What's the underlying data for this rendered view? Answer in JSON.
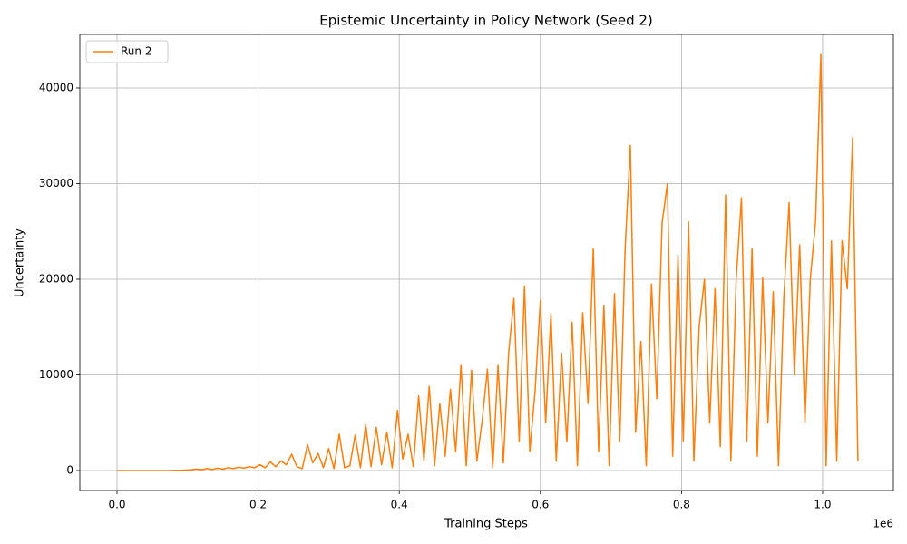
{
  "chart_data": {
    "type": "line",
    "title": "Epistemic Uncertainty in Policy Network (Seed 2)",
    "x_label": "Training Steps",
    "y_label": "Uncertainty",
    "x_offset_label": "1e6",
    "x": [
      0,
      7500,
      15000,
      22500,
      30000,
      37500,
      45000,
      52500,
      60000,
      67500,
      75000,
      82500,
      90000,
      97500,
      105000,
      112500,
      120000,
      127500,
      135000,
      142500,
      150000,
      157500,
      165000,
      172500,
      180000,
      187500,
      195000,
      202500,
      210000,
      217500,
      225000,
      232500,
      240000,
      247500,
      255000,
      262500,
      270000,
      277500,
      285000,
      292500,
      300000,
      307500,
      315000,
      322500,
      330000,
      337500,
      345000,
      352500,
      360000,
      367500,
      375000,
      382500,
      390000,
      397500,
      405000,
      412500,
      420000,
      427500,
      435000,
      442500,
      450000,
      457500,
      465000,
      472500,
      480000,
      487500,
      495000,
      502500,
      510000,
      517500,
      525000,
      532500,
      540000,
      547500,
      555000,
      562500,
      570000,
      577500,
      585000,
      592500,
      600000,
      607500,
      615000,
      622500,
      630000,
      637500,
      645000,
      652500,
      660000,
      667500,
      675000,
      682500,
      690000,
      697500,
      705000,
      712500,
      720000,
      727500,
      735000,
      742500,
      750000,
      757500,
      765000,
      772500,
      780000,
      787500,
      795000,
      802500,
      810000,
      817500,
      825000,
      832500,
      840000,
      847500,
      855000,
      862500,
      870000,
      877500,
      885000,
      892500,
      900000,
      907500,
      915000,
      922500,
      930000,
      937500,
      945000,
      952500,
      960000,
      967500,
      975000,
      982500,
      990000,
      997500,
      1005000,
      1012500,
      1020000,
      1027500,
      1035000,
      1042500,
      1050000
    ],
    "series": [
      {
        "name": "Run 2",
        "color": "#ff7f0e",
        "values": [
          0,
          0,
          0,
          0,
          0,
          0,
          0,
          0,
          0,
          0,
          0,
          20,
          30,
          50,
          80,
          150,
          100,
          200,
          120,
          250,
          150,
          300,
          200,
          350,
          250,
          400,
          300,
          600,
          300,
          900,
          400,
          1000,
          600,
          1700,
          400,
          200,
          2700,
          800,
          1800,
          300,
          2300,
          200,
          3800,
          300,
          500,
          3700,
          300,
          4800,
          400,
          4500,
          600,
          4000,
          300,
          6300,
          1200,
          3800,
          400,
          7800,
          1000,
          8800,
          500,
          7000,
          1500,
          8500,
          2000,
          11000,
          500,
          10500,
          1000,
          5200,
          10600,
          300,
          11000,
          800,
          12300,
          18000,
          3000,
          19300,
          2000,
          8300,
          17800,
          5000,
          16400,
          1000,
          12300,
          3000,
          15500,
          500,
          16500,
          7000,
          23200,
          2000,
          17300,
          500,
          18500,
          3000,
          23000,
          34000,
          4000,
          13500,
          500,
          19500,
          7500,
          25900,
          30000,
          1500,
          22500,
          3000,
          26000,
          1000,
          15000,
          20000,
          5000,
          19000,
          2500,
          28800,
          1000,
          20000,
          28500,
          3000,
          23200,
          1500,
          20200,
          5000,
          18700,
          500,
          18000,
          28000,
          10000,
          23600,
          5000,
          20000,
          26000,
          43500,
          500,
          24000,
          1000,
          24000,
          19000,
          34800,
          1000
        ]
      }
    ],
    "xlim": [
      -52700,
      1100300
    ],
    "ylim": [
      -2085,
      45590
    ],
    "xticks": [
      {
        "value": 0,
        "label": "0.0"
      },
      {
        "value": 200000,
        "label": "0.2"
      },
      {
        "value": 400000,
        "label": "0.4"
      },
      {
        "value": 600000,
        "label": "0.6"
      },
      {
        "value": 800000,
        "label": "0.8"
      },
      {
        "value": 1000000,
        "label": "1.0"
      }
    ],
    "yticks": [
      0,
      10000,
      20000,
      30000,
      40000
    ],
    "grid": true,
    "legend": "upper left"
  }
}
